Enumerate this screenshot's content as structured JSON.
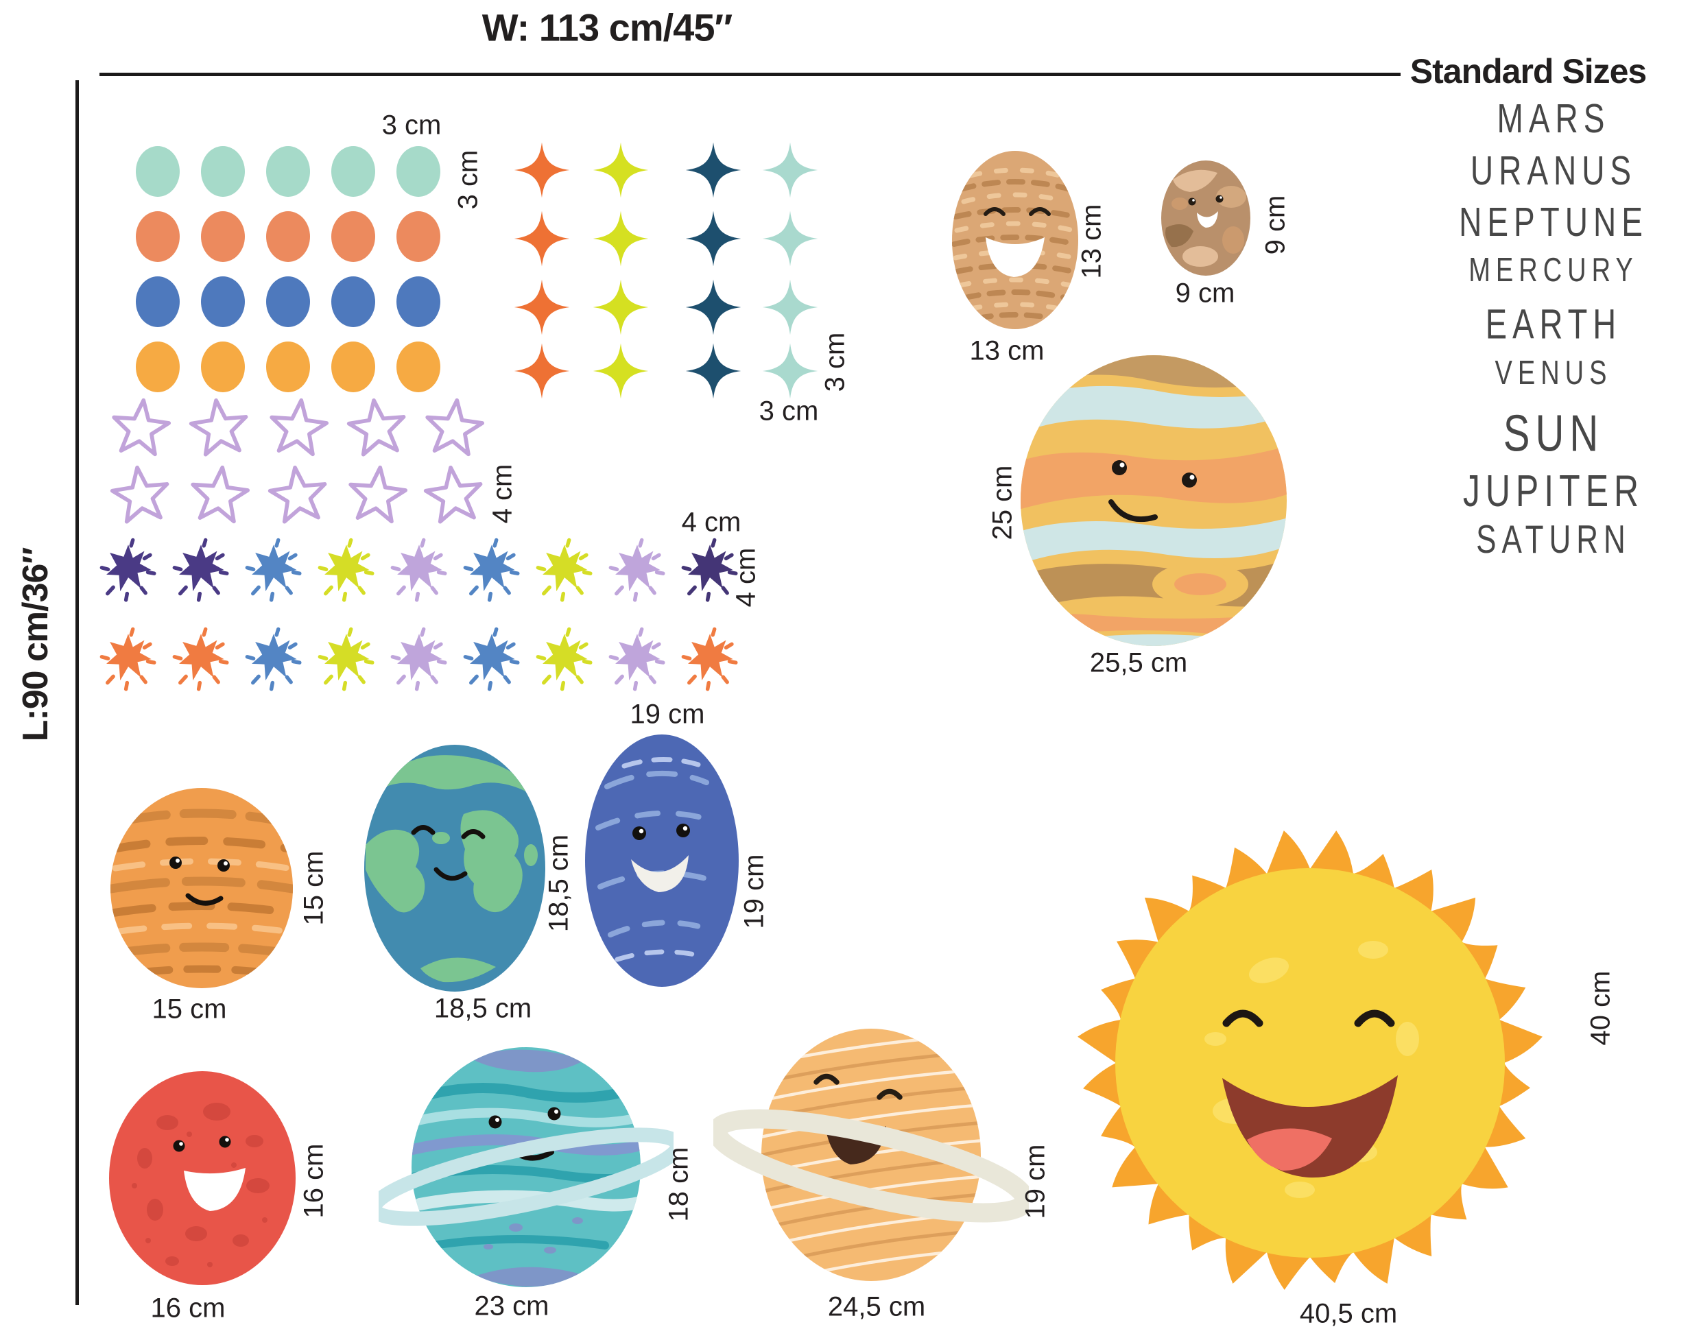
{
  "header": {
    "width_label": "W: 113 cm/45″",
    "height_label": "L:90 cm/36″",
    "standard_sizes_label": "Standard Sizes"
  },
  "legend": {
    "planet_names": [
      "MARS",
      "URANUS",
      "NEPTUNE",
      "MERCURY",
      "EARTH",
      "VENUS",
      "SUN",
      "JUPITER",
      "SATURN"
    ]
  },
  "stickers": {
    "dots": {
      "size_top": "3 cm",
      "size_side": "3 cm"
    },
    "sparkles": {
      "size_bottom": "3 cm",
      "size_side": "3 cm"
    },
    "outline_stars": {
      "size_side": "4 cm"
    },
    "starbursts": {
      "size_top": "4 cm",
      "size_side": "4 cm"
    }
  },
  "planets": {
    "mercury_large": {
      "width_label": "13 cm",
      "height_label": "13 cm"
    },
    "venus_small": {
      "width_label": "9 cm",
      "height_label": "9 cm"
    },
    "jupiter": {
      "width_label": "25,5 cm",
      "height_label": "25 cm"
    },
    "mars_striped": {
      "width_label": "15 cm",
      "height_label": "15 cm"
    },
    "earth": {
      "width_label": "18,5 cm",
      "height_label": "18,5 cm"
    },
    "neptune": {
      "width_label": "19 cm",
      "height_label": "19 cm"
    },
    "red_planet": {
      "width_label": "16 cm",
      "height_label": "16 cm"
    },
    "uranus": {
      "width_label": "23 cm",
      "height_label": "18 cm"
    },
    "saturn": {
      "width_label": "24,5 cm",
      "height_label": "19 cm"
    },
    "sun": {
      "width_label": "40,5 cm",
      "height_label": "40 cm"
    }
  },
  "palette": {
    "text": "#231f20",
    "line": "#1c1a1a",
    "dots_rows": [
      "#a6dac9",
      "#ec8a5e",
      "#4e79bd",
      "#f6aa43"
    ],
    "sparkle_cols": [
      "#ee7134",
      "#d5e021",
      "#1d4f6e",
      "#a9d9ce"
    ],
    "outline_star": "#c1a3da",
    "starburst_rows": [
      [
        "#4a3a85",
        "#4a3a85",
        "#5385c4",
        "#d5dd26",
        "#bfa5db",
        "#5385c4",
        "#d5dd26",
        "#bfa5db",
        "#443576"
      ],
      [
        "#f07b41",
        "#f07b41",
        "#5385c4",
        "#d5dd26",
        "#bfa5db",
        "#5385c4",
        "#d5dd26",
        "#bfa5db",
        "#f07b41"
      ]
    ]
  }
}
